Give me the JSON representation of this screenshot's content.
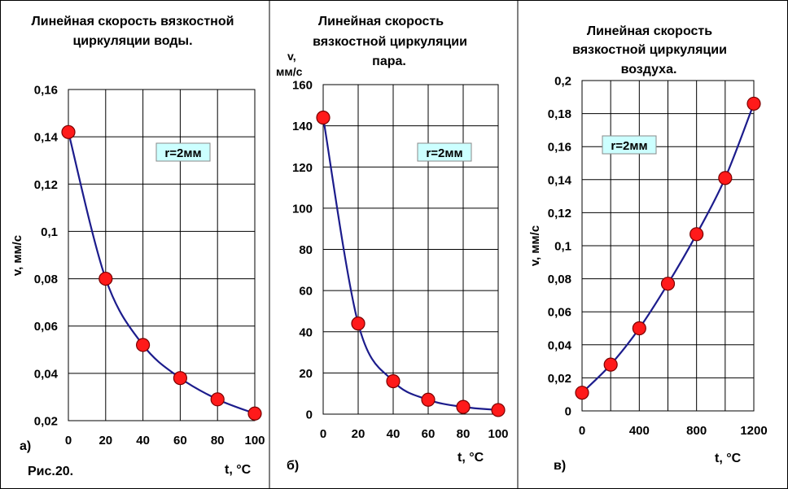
{
  "figure_caption": "Рис.20.",
  "colors": {
    "line": "#1c1c8c",
    "marker_fill": "#ff1a1a",
    "marker_edge": "#7a0000",
    "badge_bg": "#ccffff",
    "grid": "#000000"
  },
  "chart_data": [
    {
      "type": "line",
      "panel_letter": "а)",
      "title": [
        "Линейная скорость вязкостной",
        "циркуляции воды."
      ],
      "xlabel": "t, °C",
      "ylabel": "v, мм/с",
      "badge": "r=2мм",
      "x_ticks": [
        "0",
        "20",
        "40",
        "60",
        "80",
        "100"
      ],
      "y_ticks": [
        "0,02",
        "0,04",
        "0,06",
        "0,08",
        "0,1",
        "0,12",
        "0,14",
        "0,16"
      ],
      "xlim": [
        0,
        100
      ],
      "ylim": [
        0.02,
        0.16
      ],
      "x": [
        0,
        20,
        40,
        60,
        80,
        100
      ],
      "y": [
        0.142,
        0.08,
        0.052,
        0.038,
        0.029,
        0.023
      ],
      "grid": true
    },
    {
      "type": "line",
      "panel_letter": "б)",
      "title": [
        "Линейная скорость",
        "вязкостной циркуляции",
        "пара."
      ],
      "xlabel": "t, °C",
      "ylabel": "v, мм/с",
      "badge": "r=2мм",
      "x_ticks": [
        "0",
        "20",
        "40",
        "60",
        "80",
        "100"
      ],
      "y_ticks": [
        "0",
        "20",
        "40",
        "60",
        "80",
        "100",
        "120",
        "140",
        "160"
      ],
      "xlim": [
        0,
        100
      ],
      "ylim": [
        0,
        160
      ],
      "x": [
        0,
        20,
        40,
        60,
        80,
        100
      ],
      "y": [
        144,
        44,
        16,
        7,
        3.5,
        2
      ],
      "grid": true
    },
    {
      "type": "line",
      "panel_letter": "в)",
      "title": [
        "Линейная скорость",
        "вязкостной циркуляции",
        "воздуха."
      ],
      "xlabel": "t, °C",
      "ylabel": "v, мм/с",
      "badge": "r=2мм",
      "x_ticks": [
        "0",
        "400",
        "800",
        "1200"
      ],
      "y_ticks": [
        "0",
        "0,02",
        "0,04",
        "0,06",
        "0,08",
        "0,1",
        "0,12",
        "0,14",
        "0,16",
        "0,18",
        "0,2"
      ],
      "xlim": [
        0,
        1200
      ],
      "ylim": [
        0,
        0.2
      ],
      "x": [
        0,
        200,
        400,
        600,
        800,
        1000,
        1200
      ],
      "y": [
        0.011,
        0.028,
        0.05,
        0.077,
        0.107,
        0.141,
        0.186
      ],
      "grid": true
    }
  ]
}
